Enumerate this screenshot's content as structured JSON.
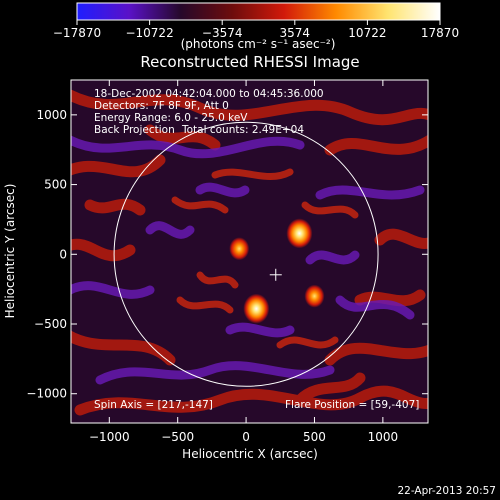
{
  "colorbar": {
    "ticks": [
      "-17870",
      "-10722",
      "-3574",
      "3574",
      "10722",
      "17870"
    ],
    "min": -17870,
    "max": 17870,
    "unit_label": "(photons cm⁻² s⁻¹ asec⁻²)",
    "stops": [
      "#1e1eff",
      "#5a12c8",
      "#26082a",
      "#6e0c0c",
      "#d21a0a",
      "#ff8a00",
      "#ffe470",
      "#ffffff"
    ]
  },
  "chart_data": {
    "type": "heatmap",
    "title": "Reconstructed RHESSI Image",
    "xlabel": "Heliocentric X (arcsec)",
    "ylabel": "Heliocentric Y (arcsec)",
    "xlim": [
      -1280,
      1330
    ],
    "ylim": [
      -1210,
      1250
    ],
    "xticks": [
      -1000,
      -500,
      0,
      500,
      1000
    ],
    "yticks": [
      -1000,
      -500,
      0,
      500,
      1000
    ],
    "solar_disk": {
      "center": [
        0,
        0
      ],
      "radius_arcsec": 965,
      "color": "#ffffff"
    },
    "spin_axis_marker": [
      217,
      -147
    ],
    "flare_position": [
      59,
      -407
    ],
    "sources": [
      {
        "x": 390,
        "y": 150,
        "intensity": 17870
      },
      {
        "x": 75,
        "y": -390,
        "intensity": 17870
      },
      {
        "x": -50,
        "y": 40,
        "intensity": 12500
      },
      {
        "x": 500,
        "y": -300,
        "intensity": 12500
      }
    ],
    "annotations": {
      "time_range": "18-Dec-2002 04:42:04.000 to 04:45:36.000",
      "detectors": "Detectors: 7F 8F 9F, Att 0",
      "energy_range": "Energy Range: 6.0 - 25.0 keV",
      "method": "Back Projection",
      "total_counts": "Total counts: 2.49E+04",
      "spin_axis": "Spin Axis = [217,-147]",
      "flare_position": "Flare Position = [59,-407]"
    }
  },
  "footer": {
    "date": "22-Apr-2013 20:57"
  }
}
